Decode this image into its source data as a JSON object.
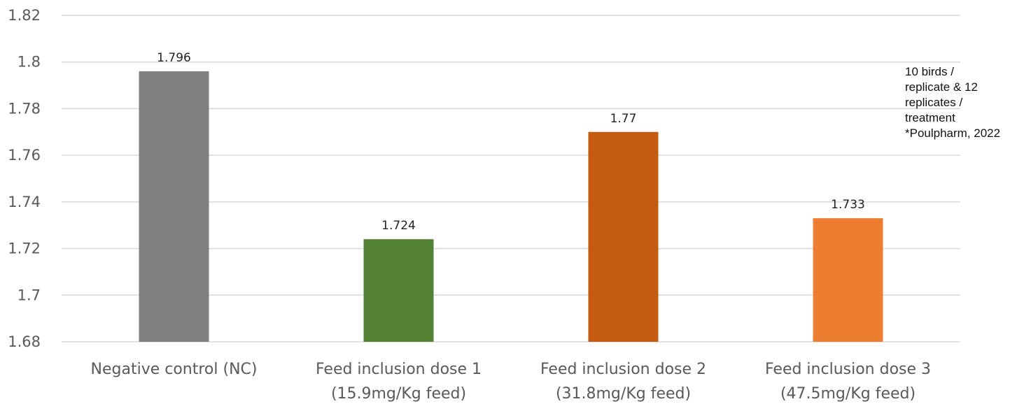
{
  "chart_data": {
    "type": "bar",
    "categories": [
      [
        "Negative control (NC)"
      ],
      [
        "Feed inclusion dose 1",
        "(15.9mg/Kg feed)"
      ],
      [
        "Feed inclusion dose 2",
        "(31.8mg/Kg feed)"
      ],
      [
        "Feed inclusion dose 3",
        "(47.5mg/Kg feed)"
      ]
    ],
    "values": [
      1.796,
      1.724,
      1.77,
      1.733
    ],
    "data_labels": [
      "1.796",
      "1.724",
      "1.77",
      "1.733"
    ],
    "colors": [
      "#7f7f7f",
      "#548235",
      "#c55a11",
      "#ed7d31"
    ],
    "ylim": [
      1.68,
      1.82
    ],
    "yticks": [
      "1.68",
      "1.7",
      "1.72",
      "1.74",
      "1.76",
      "1.78",
      "1.8",
      "1.82"
    ],
    "grid": true,
    "legend": "none",
    "gridline_color": "#d9d9d9"
  },
  "annotation": {
    "lines": [
      "10 birds /",
      "replicate & 12",
      "replicates /",
      "treatment",
      "*Poulpharm, 2022"
    ]
  }
}
